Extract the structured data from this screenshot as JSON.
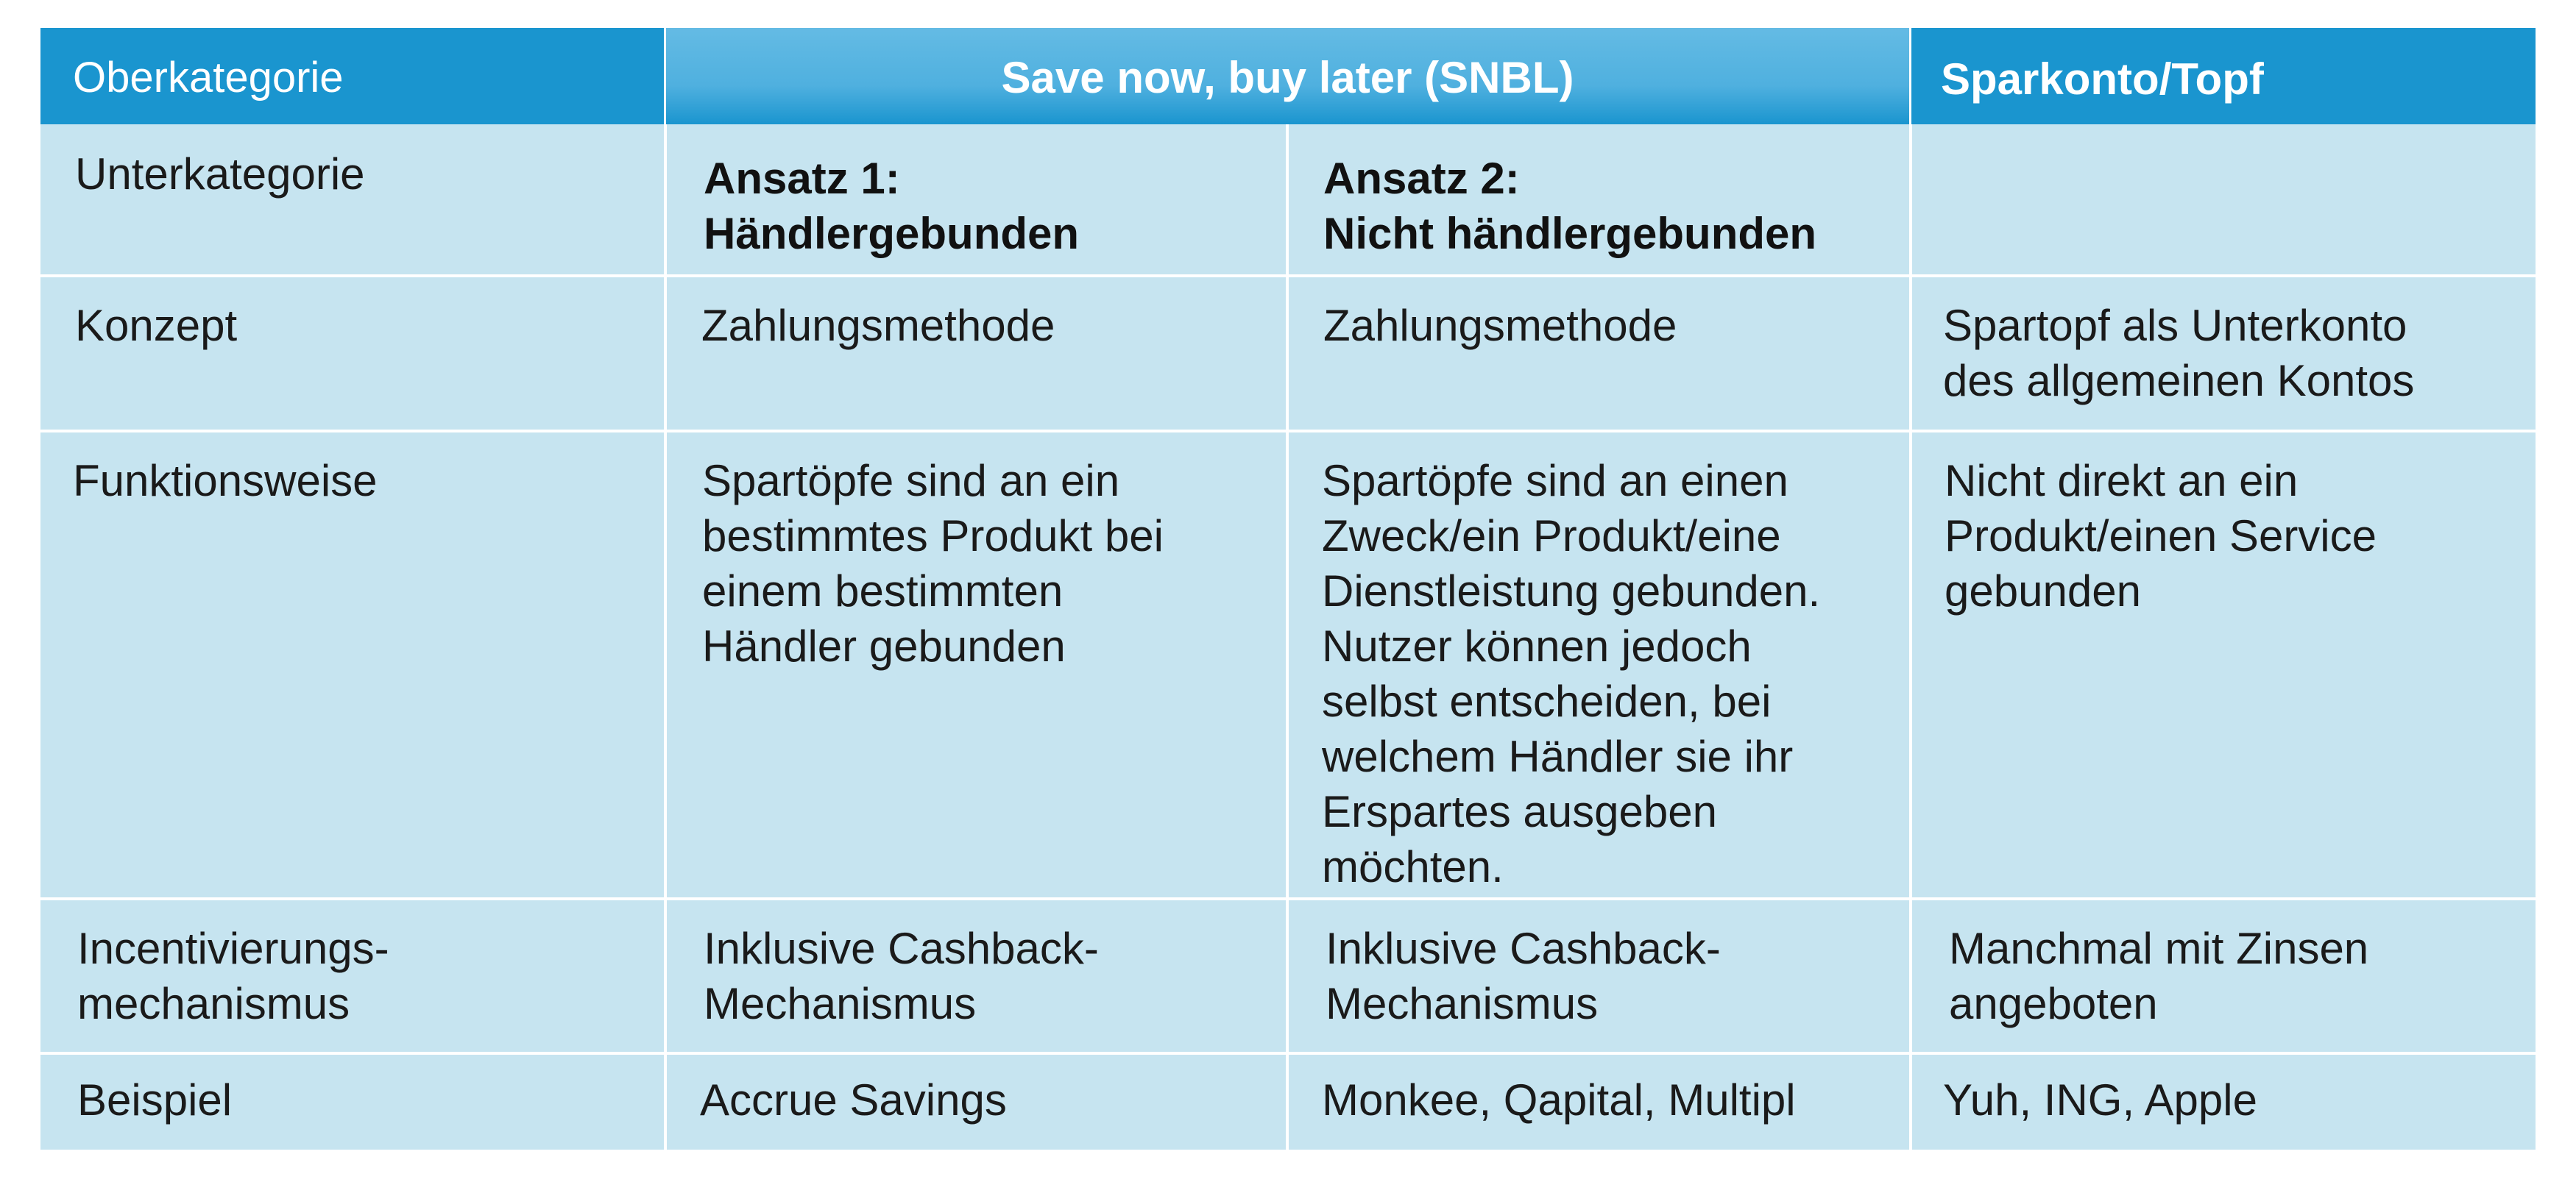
{
  "header": {
    "oberkategorie": "Oberkategorie",
    "snbl": "Save now, buy later (SNBL)",
    "sparkonto": "Sparkonto/Topf"
  },
  "rows": {
    "unterkategorie": {
      "label": "Unterkategorie",
      "ansatz1_line1": "Ansatz 1:",
      "ansatz1_line2": "Händlergebunden",
      "ansatz2_line1": "Ansatz 2:",
      "ansatz2_line2": "Nicht händlergebunden",
      "sparkonto": ""
    },
    "konzept": {
      "label": "Konzept",
      "ansatz1": "Zahlungsmethode",
      "ansatz2": "Zahlungsmethode",
      "sparkonto_line1": "Spartopf als Unterkonto",
      "sparkonto_line2": "des allgemeinen Kontos"
    },
    "funktionsweise": {
      "label": "Funktionsweise",
      "ansatz1_lines": [
        "Spartöpfe sind an ein",
        "bestimmtes Produkt bei",
        "einem bestimmten",
        "Händler gebunden"
      ],
      "ansatz2_lines": [
        "Spartöpfe sind an einen",
        "Zweck/ein Produkt/eine",
        "Dienstleistung gebunden.",
        "Nutzer können jedoch",
        "selbst entscheiden, bei",
        "welchem Händler sie ihr",
        "Erspartes ausgeben",
        "möchten."
      ],
      "sparkonto_lines": [
        "Nicht direkt an ein",
        "Produkt/einen Service",
        "gebunden"
      ]
    },
    "incentivierung": {
      "label_line1": "Incentivierungs-",
      "label_line2": "mechanismus",
      "ansatz1_line1": "Inklusive Cashback-",
      "ansatz1_line2": "Mechanismus",
      "ansatz2_line1": "Inklusive Cashback-",
      "ansatz2_line2": "Mechanismus",
      "sparkonto_line1": "Manchmal mit Zinsen",
      "sparkonto_line2": "angeboten"
    },
    "beispiel": {
      "label": "Beispiel",
      "ansatz1": "Accrue Savings",
      "ansatz2": "Monkee, Qapital, Multipl",
      "sparkonto": "Yuh, ING, Apple"
    }
  }
}
